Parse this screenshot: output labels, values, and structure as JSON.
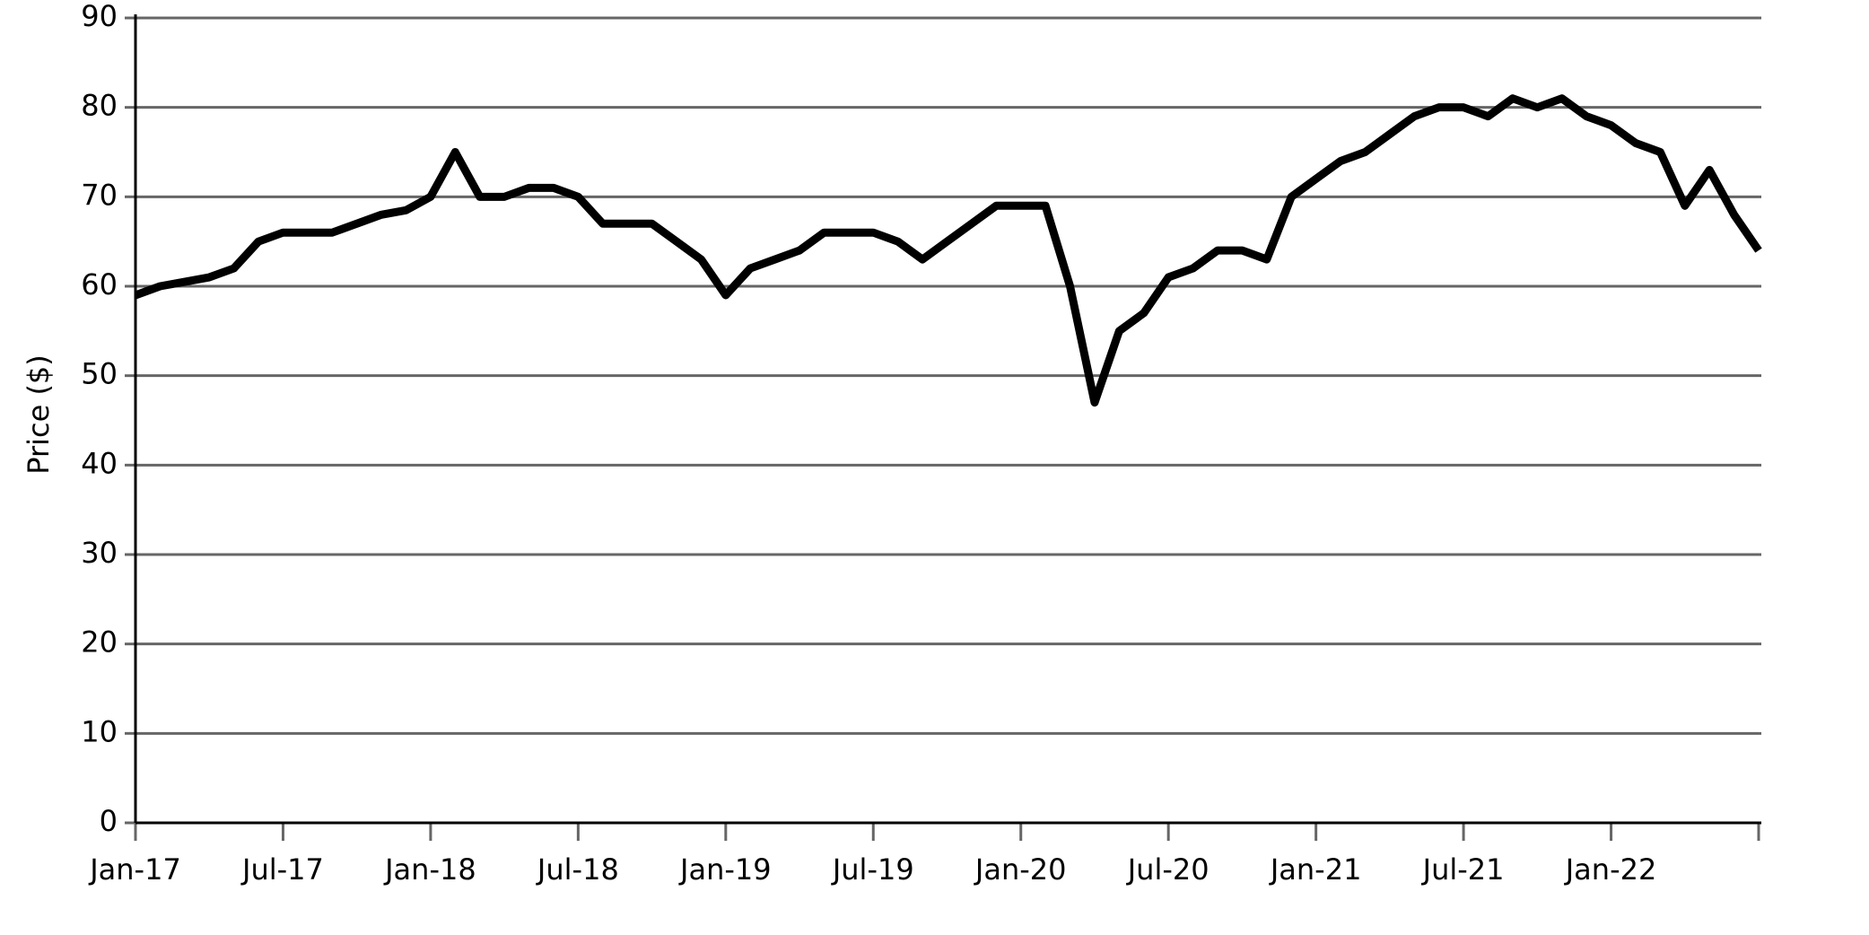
{
  "chart_data": {
    "type": "line",
    "y_label": "Price ($)",
    "x": [
      "2017-01",
      "2017-02",
      "2017-03",
      "2017-04",
      "2017-05",
      "2017-06",
      "2017-07",
      "2017-08",
      "2017-09",
      "2017-10",
      "2017-11",
      "2017-12",
      "2018-01",
      "2018-02",
      "2018-03",
      "2018-04",
      "2018-05",
      "2018-06",
      "2018-07",
      "2018-08",
      "2018-09",
      "2018-10",
      "2018-11",
      "2018-12",
      "2019-01",
      "2019-02",
      "2019-03",
      "2019-04",
      "2019-05",
      "2019-06",
      "2019-07",
      "2019-08",
      "2019-09",
      "2019-10",
      "2019-11",
      "2019-12",
      "2020-01",
      "2020-02",
      "2020-03",
      "2020-04",
      "2020-05",
      "2020-06",
      "2020-07",
      "2020-08",
      "2020-09",
      "2020-10",
      "2020-11",
      "2020-12",
      "2021-01",
      "2021-02",
      "2021-03",
      "2021-04",
      "2021-05",
      "2021-06",
      "2021-07",
      "2021-08",
      "2021-09",
      "2021-10",
      "2021-11",
      "2021-12",
      "2022-01",
      "2022-02",
      "2022-03",
      "2022-04",
      "2022-05",
      "2022-06",
      "2022-07"
    ],
    "series": [
      {
        "name": "Price",
        "color": "#000000",
        "values": [
          59,
          60,
          60.5,
          61,
          62,
          65,
          66,
          66,
          66,
          67,
          68,
          68.5,
          70,
          75,
          70,
          70,
          71,
          71,
          70,
          67,
          67,
          67,
          65,
          63,
          59,
          62,
          63,
          64,
          66,
          66,
          66,
          65,
          63,
          65,
          67,
          69,
          69,
          69,
          60,
          47,
          55,
          57,
          61,
          62,
          64,
          64,
          63,
          70,
          72,
          74,
          75,
          77,
          79,
          80,
          80,
          79,
          81,
          80,
          81,
          79,
          78,
          76,
          75,
          69,
          73,
          68,
          64
        ]
      }
    ],
    "xlim": [
      "2017-01",
      "2022-07"
    ],
    "xticks": [
      {
        "value": "2017-01",
        "label": "Jan-17"
      },
      {
        "value": "2017-07",
        "label": "Jul-17"
      },
      {
        "value": "2018-01",
        "label": "Jan-18"
      },
      {
        "value": "2018-07",
        "label": "Jul-18"
      },
      {
        "value": "2019-01",
        "label": "Jan-19"
      },
      {
        "value": "2019-07",
        "label": "Jul-19"
      },
      {
        "value": "2020-01",
        "label": "Jan-20"
      },
      {
        "value": "2020-07",
        "label": "Jul-20"
      },
      {
        "value": "2021-01",
        "label": "Jan-21"
      },
      {
        "value": "2021-07",
        "label": "Jul-21"
      },
      {
        "value": "2022-01",
        "label": "Jan-22"
      },
      {
        "value": "2022-07",
        "label": null
      }
    ],
    "ylim": [
      0,
      90
    ],
    "yticks": [
      0,
      10,
      20,
      30,
      40,
      50,
      60,
      70,
      80,
      90
    ],
    "grid": true
  }
}
